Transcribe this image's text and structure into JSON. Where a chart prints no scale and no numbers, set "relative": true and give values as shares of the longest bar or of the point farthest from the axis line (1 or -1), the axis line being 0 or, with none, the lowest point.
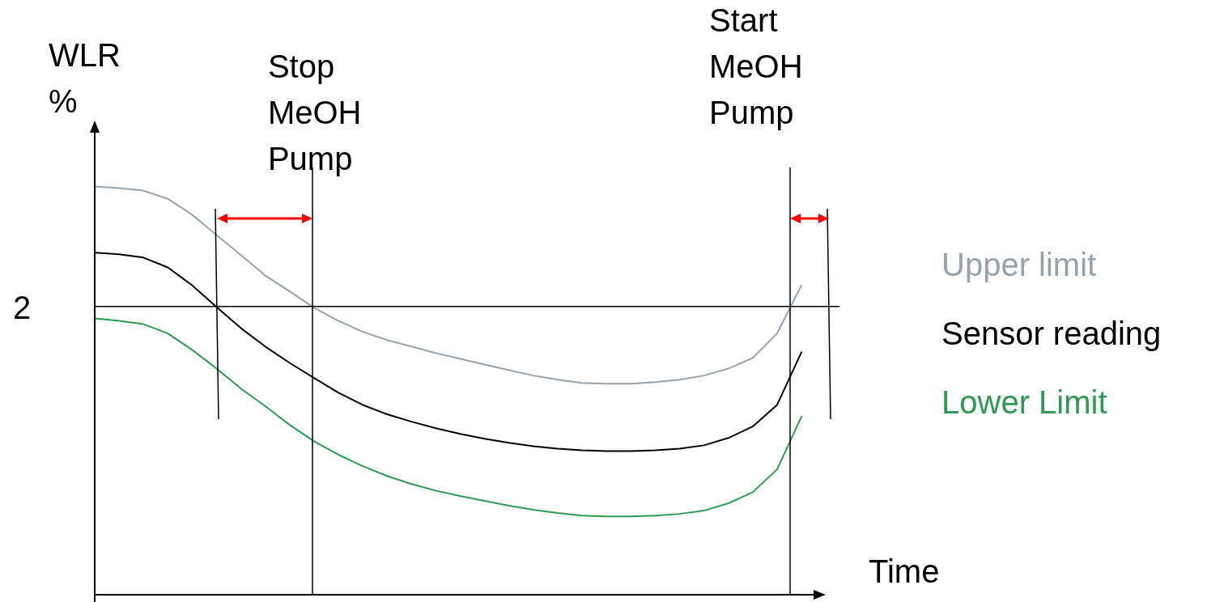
{
  "chart_data": {
    "type": "line",
    "relative": true,
    "ylabel": "WLR %",
    "xlabel": "Time",
    "legend": false,
    "marker": "none",
    "line_style": "solid",
    "annotations": [
      "2",
      "Stop MeOH Pump",
      "Start MeOH Pump"
    ],
    "categories": [
      null,
      null,
      null,
      null,
      null,
      null,
      null,
      null,
      null,
      null,
      null,
      null,
      null,
      null,
      null,
      null,
      null,
      null,
      null,
      null,
      null,
      null,
      null,
      null,
      null,
      null,
      null,
      null,
      null,
      null
    ],
    "series": [
      {
        "name": "Upper limit",
        "color": "#98a2ab",
        "values": [
          1.0,
          0.996,
          0.99,
          0.97,
          0.931,
          0.881,
          0.832,
          0.782,
          0.743,
          0.703,
          0.671,
          0.644,
          0.624,
          0.608,
          0.592,
          0.578,
          0.564,
          0.55,
          0.537,
          0.527,
          0.519,
          0.517,
          0.517,
          0.521,
          0.527,
          0.537,
          0.554,
          0.58,
          0.64,
          0.758
        ]
      },
      {
        "name": "Sensor reading",
        "color": "#000000",
        "values": [
          0.838,
          0.834,
          0.826,
          0.802,
          0.758,
          0.705,
          0.653,
          0.608,
          0.568,
          0.531,
          0.495,
          0.465,
          0.442,
          0.424,
          0.408,
          0.394,
          0.382,
          0.372,
          0.364,
          0.358,
          0.354,
          0.352,
          0.352,
          0.354,
          0.358,
          0.366,
          0.384,
          0.412,
          0.465,
          0.594
        ]
      },
      {
        "name": "Lower Limit",
        "color": "#2e9a55",
        "values": [
          0.677,
          0.671,
          0.663,
          0.64,
          0.6,
          0.554,
          0.505,
          0.462,
          0.416,
          0.376,
          0.343,
          0.315,
          0.291,
          0.271,
          0.255,
          0.242,
          0.23,
          0.218,
          0.208,
          0.2,
          0.194,
          0.192,
          0.192,
          0.194,
          0.198,
          0.206,
          0.224,
          0.251,
          0.307,
          0.436
        ]
      }
    ]
  }
}
